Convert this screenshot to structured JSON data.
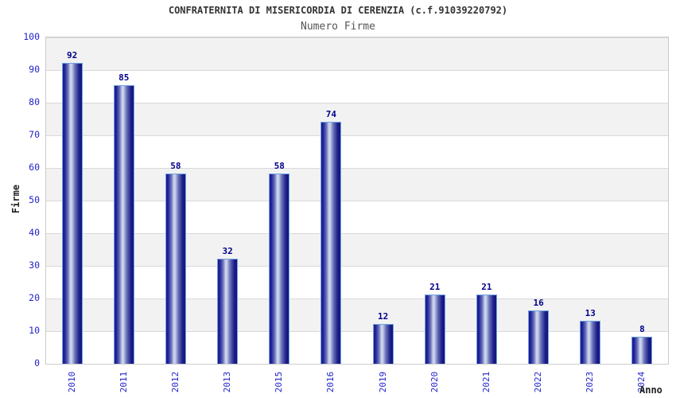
{
  "header": {
    "title": "CONFRATERNITA DI MISERICORDIA DI CERENZIA (c.f.91039220792)",
    "subtitle": "Numero Firme"
  },
  "axes": {
    "y_label": "Firme",
    "x_label": "Anno",
    "y_ticks": [
      "100",
      "90",
      "80",
      "70",
      "60",
      "50",
      "40",
      "30",
      "20",
      "10",
      "0"
    ]
  },
  "colors": {
    "tick_label": "#2323cc",
    "value_label": "#00008b",
    "bar_dark": "#1b1b8e",
    "bar_light": "#ccd4ee",
    "bar_outline": "#6fa3e0",
    "band_gray": "#f2f2f2",
    "band_white": "#ffffff",
    "grid_line": "#d9d9d9",
    "plot_border": "#cccccc",
    "title_text": "#333333",
    "subtitle_text": "#555555"
  },
  "chart_data": {
    "type": "bar",
    "title": "CONFRATERNITA DI MISERICORDIA DI CERENZIA (c.f.91039220792)",
    "subtitle": "Numero Firme",
    "xlabel": "Anno",
    "ylabel": "Firme",
    "categories": [
      "2010",
      "2011",
      "2012",
      "2013",
      "2015",
      "2016",
      "2019",
      "2020",
      "2021",
      "2022",
      "2023",
      "2024"
    ],
    "values": [
      92,
      85,
      58,
      32,
      58,
      74,
      12,
      21,
      21,
      16,
      13,
      8
    ],
    "ylim": [
      0,
      100
    ],
    "y_tick_step": 10,
    "grid": "horizontal alternating bands",
    "legend": "none",
    "value_labels_shown": true,
    "bar_style": "vertical cylinder gradient, navy blue"
  }
}
